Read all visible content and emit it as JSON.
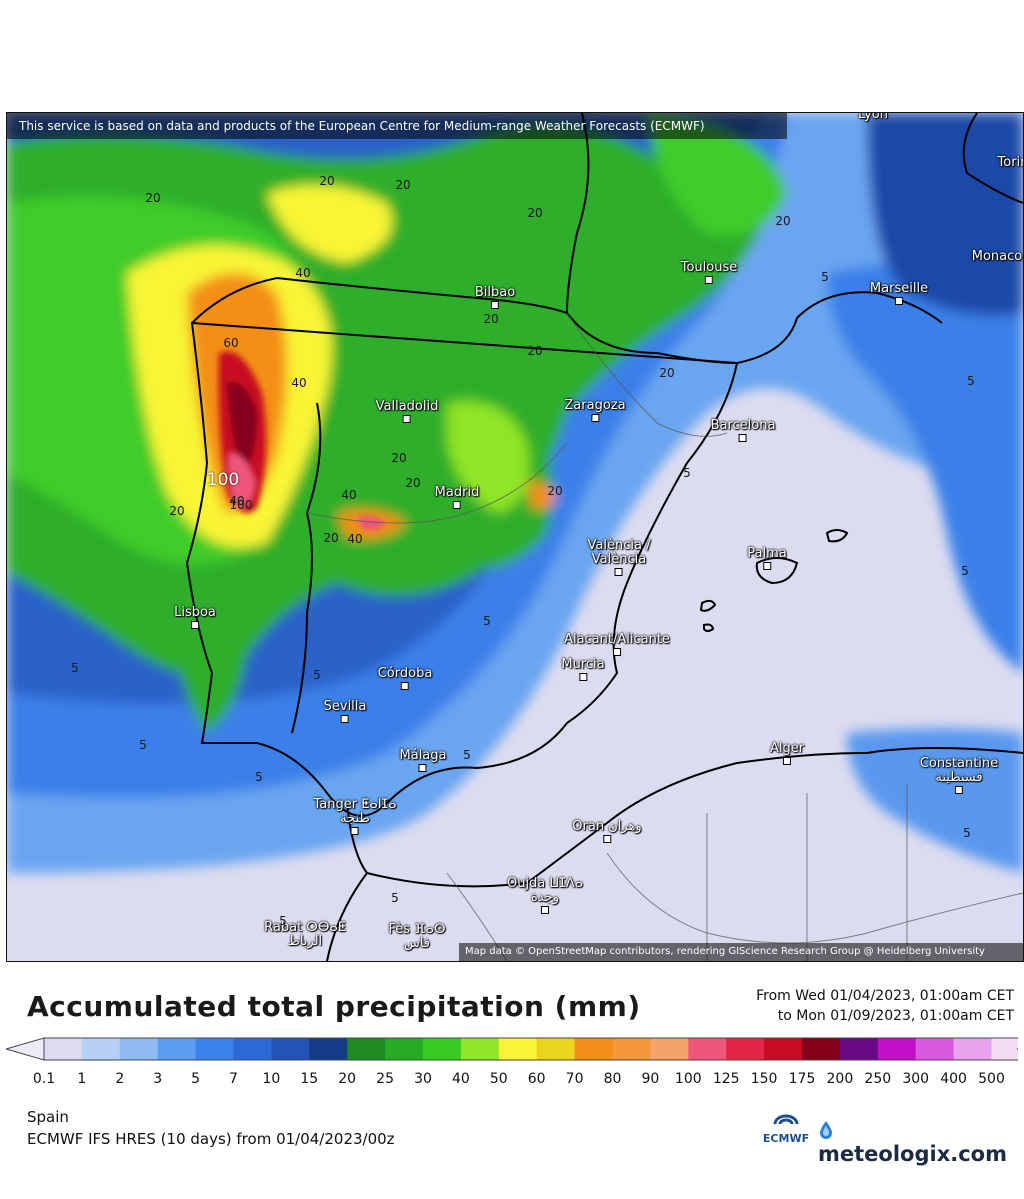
{
  "map": {
    "attribution_top": "This service is based on data and products of the European Centre for Medium-range Weather Forecasts (ECMWF)",
    "attribution_bottom": "Map data © OpenStreetMap contributors, rendering GIScience Research Group @ Heidelberg University",
    "cities": [
      {
        "name": "Lyon",
        "label": "Lyon"
      },
      {
        "name": "Torino",
        "label": "Torin"
      },
      {
        "name": "Monaco",
        "label": "Monaco"
      },
      {
        "name": "Toulouse",
        "label": "Toulouse"
      },
      {
        "name": "Marseille",
        "label": "Marseille"
      },
      {
        "name": "Bilbao",
        "label": "Bilbao"
      },
      {
        "name": "Valladolid",
        "label": "Valladolid"
      },
      {
        "name": "Zaragoza",
        "label": "Zaragoza"
      },
      {
        "name": "Barcelona",
        "label": "Barcelona"
      },
      {
        "name": "Madrid",
        "label": "Madrid"
      },
      {
        "name": "Valencia",
        "label": "València /\nValència"
      },
      {
        "name": "Palma",
        "label": "Palma"
      },
      {
        "name": "Lisboa",
        "label": "Lisboa"
      },
      {
        "name": "Alicante",
        "label": "Alacant/Alicante"
      },
      {
        "name": "Murcia",
        "label": "Murcia"
      },
      {
        "name": "Cordoba",
        "label": "Córdoba"
      },
      {
        "name": "Sevilla",
        "label": "Sevilla"
      },
      {
        "name": "Malaga",
        "label": "Málaga"
      },
      {
        "name": "Alger",
        "label": "Alger"
      },
      {
        "name": "Constantine",
        "label": "Constantine\nقسنطينة"
      },
      {
        "name": "Tanger",
        "label": "Tanger ⵟⴰⵏⵊⴰ\nطنجة"
      },
      {
        "name": "Oran",
        "label": "Oran وهران"
      },
      {
        "name": "Oujda",
        "label": "Oujda ⵡⵊⴷⴰ\nوجدة"
      },
      {
        "name": "Rabat",
        "label": "Rabat ⵔⴱⴰⵟ\nالرباط"
      },
      {
        "name": "Fes",
        "label": "Fès ⴼⴰⵙ\nفاس"
      }
    ],
    "contour_labels": [
      "20",
      "20",
      "20",
      "20",
      "20",
      "20",
      "20",
      "20",
      "20",
      "20",
      "20",
      "20",
      "20",
      "40",
      "40",
      "40",
      "40",
      "40",
      "60",
      "100",
      "100",
      "5",
      "5",
      "5",
      "5",
      "5",
      "5",
      "5",
      "5",
      "5",
      "5",
      "5",
      "5",
      "5"
    ]
  },
  "legend": {
    "title": "Accumulated total precipitation (mm)",
    "from": "From Wed 01/04/2023, 01:00am CET",
    "to": "to Mon 01/09/2023, 01:00am CET",
    "labels": [
      "0.1",
      "1",
      "2",
      "3",
      "5",
      "7",
      "10",
      "15",
      "20",
      "25",
      "30",
      "40",
      "50",
      "60",
      "70",
      "80",
      "90",
      "100",
      "125",
      "150",
      "175",
      "200",
      "250",
      "300",
      "400",
      "500"
    ],
    "colors": [
      "#dcdcee",
      "#b7d0f4",
      "#8fbaf2",
      "#5c9cf0",
      "#3b83ea",
      "#2c69d8",
      "#2254b8",
      "#133b86",
      "#1e8a22",
      "#27ab25",
      "#37cc24",
      "#8fe528",
      "#f8f536",
      "#e9d51e",
      "#f38e18",
      "#f4963a",
      "#f5a36b",
      "#ef577a",
      "#e42548",
      "#c80a22",
      "#84001a",
      "#6a0a82",
      "#c20ec6",
      "#d95ae0",
      "#e8a3ef",
      "#f6ddf6",
      "#d2d2d2"
    ],
    "under_color": "#ececf8",
    "over_color": "#9a9a9a"
  },
  "footer": {
    "region": "Spain",
    "model": "ECMWF IFS HRES (10 days) from 01/04/2023/00z",
    "ecmwf_logo": "ECMWF",
    "brand": "meteologix.com"
  }
}
